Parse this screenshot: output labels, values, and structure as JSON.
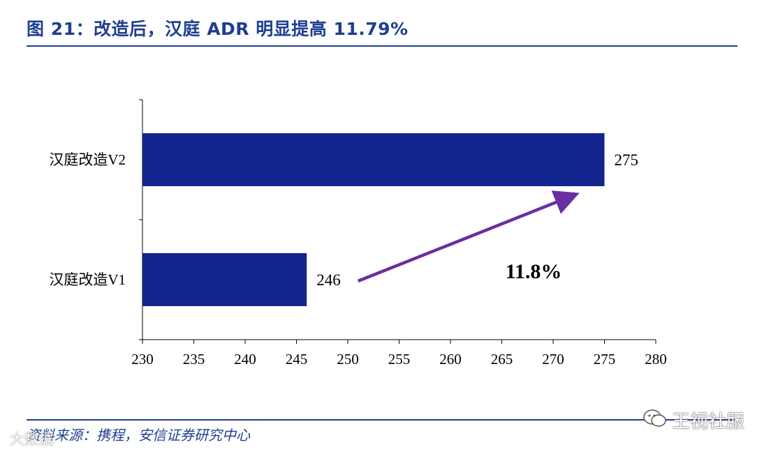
{
  "title": "图 21：改造后，汉庭 ADR 明显提高 11.79%",
  "source": "资料来源：携程，安信证券研究中心",
  "watermark": {
    "left_text": "大数据",
    "right_text": "王视社服",
    "icon": "wechat-icon"
  },
  "colors": {
    "accent": "#1f3f8f",
    "bar": "#13258f",
    "arrow": "#6a2ea0"
  },
  "chart_data": {
    "type": "bar",
    "orientation": "horizontal",
    "categories": [
      "汉庭改造V2",
      "汉庭改造V1"
    ],
    "values": [
      275,
      246
    ],
    "data_labels": [
      "275",
      "246"
    ],
    "xlim": [
      230,
      280
    ],
    "x_ticks": [
      230,
      235,
      240,
      245,
      250,
      255,
      260,
      265,
      270,
      275,
      280
    ],
    "grid": false,
    "annotation": {
      "text": "11.8%",
      "arrow_from": {
        "x": 251,
        "category": "汉庭改造V1"
      },
      "arrow_to": {
        "x": 272,
        "category": "汉庭改造V2"
      }
    }
  }
}
